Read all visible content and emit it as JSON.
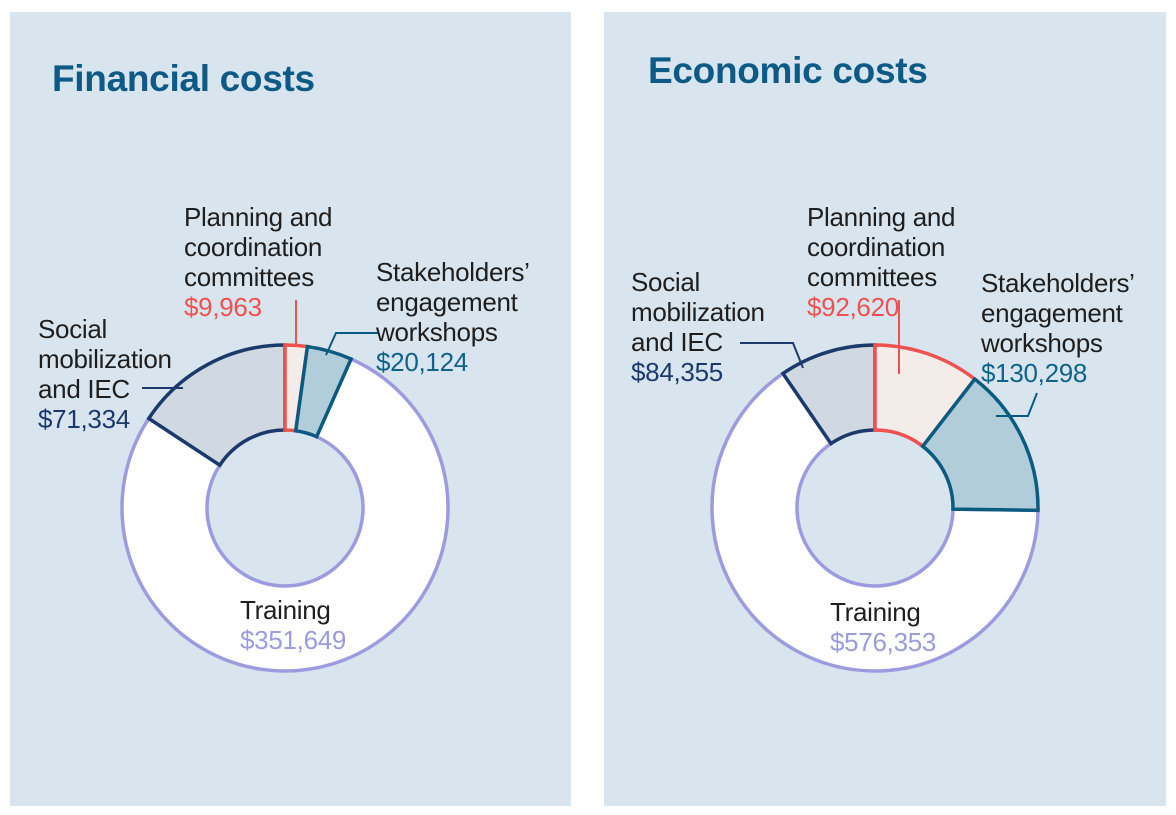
{
  "chart_data": [
    {
      "type": "pie",
      "variant": "donut",
      "title": "Financial costs",
      "start": "12 o'clock, clockwise",
      "slices": [
        {
          "key": "plan",
          "label": "Planning and\ncoordination\ncommittees",
          "value": 9963,
          "value_label": "$9,963",
          "stroke": "#ef5050",
          "fill": "#f3ece8"
        },
        {
          "key": "stake",
          "label": "Stakeholders’\nengagement\nworkshops",
          "value": 20124,
          "value_label": "$20,124",
          "stroke": "#0b5a80",
          "fill": "#b0cdd9"
        },
        {
          "key": "train",
          "label": "Training",
          "value": 351649,
          "value_label": "$351,649",
          "stroke": "#9d9be0",
          "fill": "#ffffff"
        },
        {
          "key": "social",
          "label": "Social\nmobilization\nand IEC",
          "value": 71334,
          "value_label": "$71,334",
          "stroke": "#1b3a6b",
          "fill": "#d0d9e2"
        }
      ]
    },
    {
      "type": "pie",
      "variant": "donut",
      "title": "Economic costs",
      "start": "12 o'clock, clockwise",
      "slices": [
        {
          "key": "plan",
          "label": "Planning and\ncoordination\ncommittees",
          "value": 92620,
          "value_label": "$92,620",
          "stroke": "#ef5050",
          "fill": "#f3ece8"
        },
        {
          "key": "stake",
          "label": "Stakeholders’\nengagement\nworkshops",
          "value": 130298,
          "value_label": "$130,298",
          "stroke": "#0b5a80",
          "fill": "#b0cdd9"
        },
        {
          "key": "train",
          "label": "Training",
          "value": 576353,
          "value_label": "$576,353",
          "stroke": "#9d9be0",
          "fill": "#ffffff"
        },
        {
          "key": "social",
          "label": "Social\nmobilization\nand IEC",
          "value": 84355,
          "value_label": "$84,355",
          "stroke": "#1b3a6b",
          "fill": "#d0d9e2"
        }
      ]
    }
  ]
}
